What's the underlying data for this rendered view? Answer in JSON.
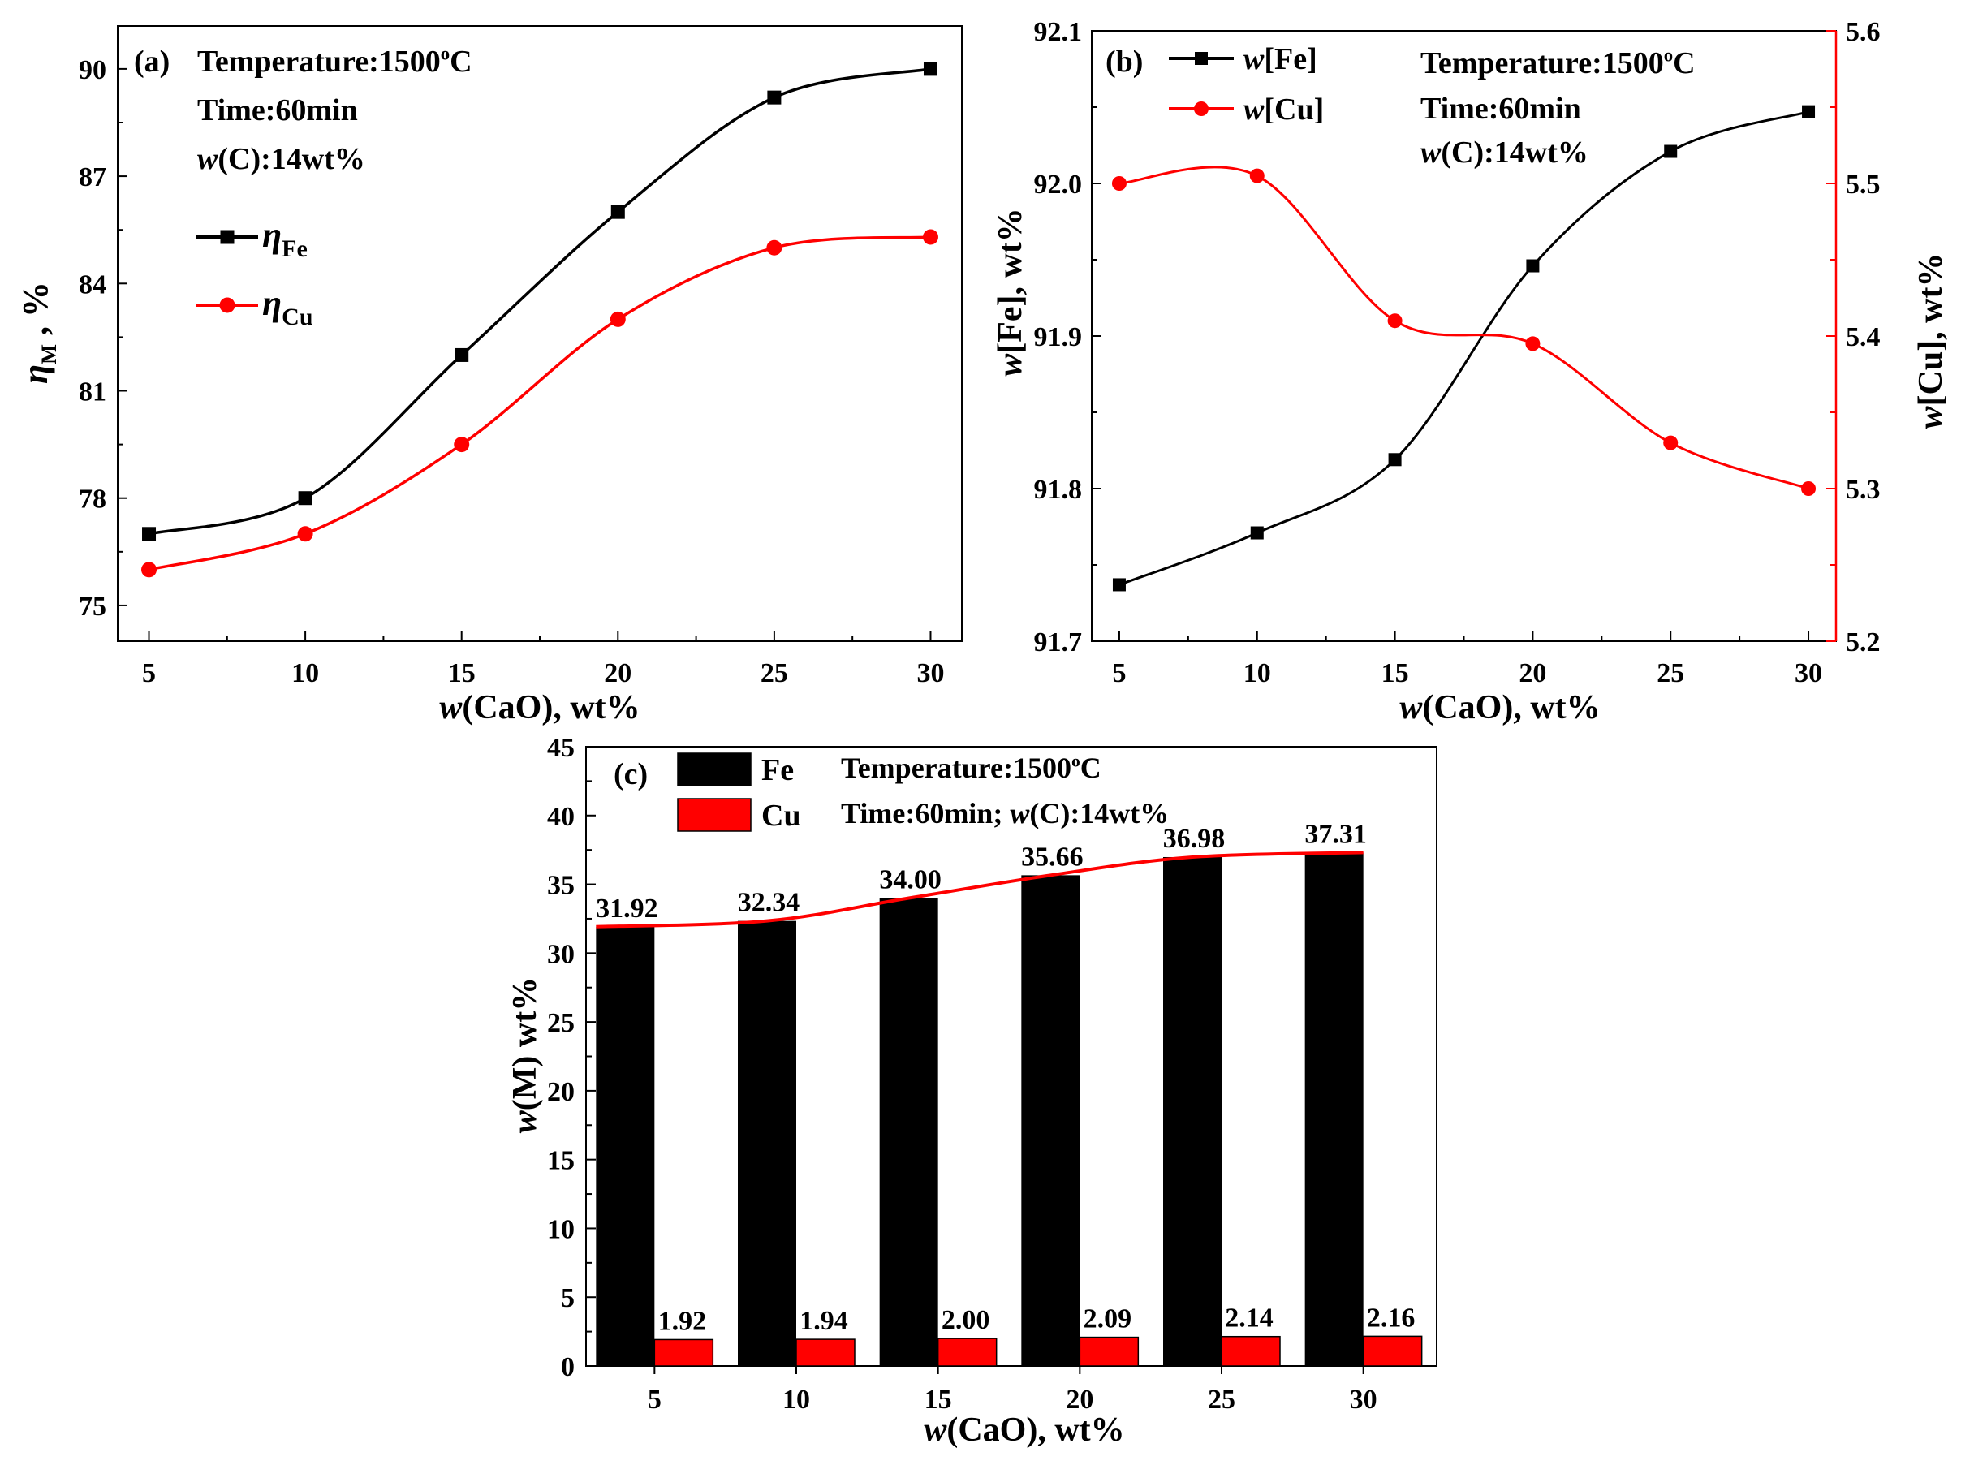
{
  "chart_data": [
    {
      "panel": "(a)",
      "type": "line",
      "x": [
        5,
        10,
        15,
        20,
        25,
        30
      ],
      "series": [
        {
          "name": "η_Fe",
          "sym": "η",
          "sub": "Fe",
          "color": "#000000",
          "marker": "square",
          "values": [
            77.0,
            78.0,
            82.0,
            86.0,
            89.2,
            90.0
          ]
        },
        {
          "name": "η_Cu",
          "sym": "η",
          "sub": "Cu",
          "color": "#ff0000",
          "marker": "circle",
          "values": [
            76.0,
            77.0,
            79.5,
            83.0,
            85.0,
            85.3
          ]
        }
      ],
      "annotations": [
        [
          {
            "t": "Temperature:1500"
          },
          {
            "t": "o",
            "sup": true
          },
          {
            "t": "C"
          }
        ],
        [
          {
            "t": "Time:60min"
          }
        ],
        [
          {
            "t": "w",
            "i": true
          },
          {
            "t": "(C):14wt%"
          }
        ]
      ],
      "xlabel": [
        {
          "t": "w",
          "i": true
        },
        {
          "t": "(CaO), wt%"
        }
      ],
      "ylabel": [
        {
          "t": "η",
          "i": true
        },
        {
          "t": "M",
          "sub": true
        },
        {
          "t": " , %"
        }
      ],
      "xlim": [
        4,
        31
      ],
      "ylim": [
        74,
        91.2
      ],
      "xticks": [
        5,
        10,
        15,
        20,
        25,
        30
      ],
      "yticks": [
        75,
        78,
        81,
        84,
        87,
        90
      ],
      "legend": "upper-left"
    },
    {
      "panel": "(b)",
      "type": "line",
      "x": [
        5,
        10,
        15,
        20,
        25,
        30
      ],
      "series": [
        {
          "name": "w[Fe]",
          "label": [
            {
              "t": "w",
              "i": true
            },
            {
              "t": "[Fe]"
            }
          ],
          "color": "#000000",
          "marker": "square",
          "axis": "left",
          "values": [
            91.737,
            91.771,
            91.819,
            91.946,
            92.021,
            92.047
          ]
        },
        {
          "name": "w[Cu]",
          "label": [
            {
              "t": "w",
              "i": true
            },
            {
              "t": "[Cu]"
            }
          ],
          "color": "#ff0000",
          "marker": "circle",
          "axis": "right",
          "values": [
            5.5,
            5.505,
            5.41,
            5.395,
            5.33,
            5.3
          ]
        }
      ],
      "annotations": [
        [
          {
            "t": "Temperature:1500"
          },
          {
            "t": "o",
            "sup": true
          },
          {
            "t": "C"
          }
        ],
        [
          {
            "t": "Time:60min"
          }
        ],
        [
          {
            "t": "w",
            "i": true
          },
          {
            "t": "(C):14wt%"
          }
        ]
      ],
      "xlabel": [
        {
          "t": "w",
          "i": true
        },
        {
          "t": "(CaO), wt%"
        }
      ],
      "ylabel": [
        {
          "t": "w",
          "i": true
        },
        {
          "t": "[Fe], wt%"
        }
      ],
      "y2label": [
        {
          "t": "w",
          "i": true
        },
        {
          "t": "[Cu], wt%"
        }
      ],
      "xlim": [
        4,
        31
      ],
      "ylim": [
        91.7,
        92.1
      ],
      "y2lim": [
        5.2,
        5.6
      ],
      "xticks": [
        5,
        10,
        15,
        20,
        25,
        30
      ],
      "yticks": [
        "91.7",
        "91.8",
        "91.9",
        "92.0",
        "92.1"
      ],
      "y2ticks": [
        "5.2",
        "5.3",
        "5.4",
        "5.5",
        "5.6"
      ],
      "legend": "upper-left"
    },
    {
      "panel": "(c)",
      "type": "bar",
      "categories": [
        "5",
        "10",
        "15",
        "20",
        "25",
        "30"
      ],
      "series": [
        {
          "name": "Fe",
          "color": "#000000",
          "values": [
            31.92,
            32.34,
            34.0,
            35.66,
            36.98,
            37.31
          ],
          "labels": [
            "31.92",
            "32.34",
            "34.00",
            "35.66",
            "36.98",
            "37.31"
          ]
        },
        {
          "name": "Cu",
          "color": "#ff0000",
          "values": [
            1.92,
            1.94,
            2.0,
            2.09,
            2.14,
            2.16
          ],
          "labels": [
            "1.92",
            "1.94",
            "2.00",
            "2.09",
            "2.14",
            "2.16"
          ]
        }
      ],
      "trend_line": {
        "series": "Fe",
        "color": "#ff0000"
      },
      "annotations": [
        [
          {
            "t": "Temperature:1500"
          },
          {
            "t": "o",
            "sup": true
          },
          {
            "t": "C"
          }
        ],
        [
          {
            "t": "Time:60min; "
          },
          {
            "t": "w",
            "i": true
          },
          {
            "t": "(C):14wt%"
          }
        ]
      ],
      "xlabel": [
        {
          "t": "w",
          "i": true
        },
        {
          "t": "(CaO), wt%"
        }
      ],
      "ylabel": [
        {
          "t": "w",
          "i": true
        },
        {
          "t": "(M) wt%"
        }
      ],
      "ylim": [
        0,
        45
      ],
      "yticks": [
        0,
        5,
        10,
        15,
        20,
        25,
        30,
        35,
        40,
        45
      ],
      "legend": "upper-left"
    }
  ]
}
